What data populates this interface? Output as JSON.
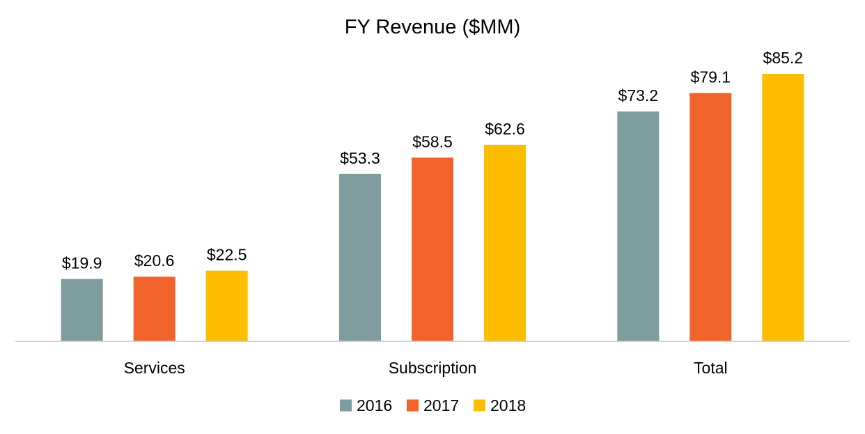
{
  "chart_data": {
    "type": "bar",
    "title": "FY Revenue ($MM)",
    "categories": [
      "Services",
      "Subscription",
      "Total"
    ],
    "series": [
      {
        "name": "2016",
        "color": "#7F9C9F",
        "values": [
          19.9,
          53.3,
          73.2
        ],
        "labels": [
          "$19.9",
          "$53.3",
          "$73.2"
        ]
      },
      {
        "name": "2017",
        "color": "#F0632A",
        "values": [
          20.6,
          58.5,
          79.1
        ],
        "labels": [
          "$20.6",
          "$58.5",
          "$79.1"
        ]
      },
      {
        "name": "2018",
        "color": "#FDBD00",
        "values": [
          22.5,
          62.6,
          85.2
        ],
        "labels": [
          "$22.5",
          "$62.6",
          "$85.2"
        ]
      }
    ],
    "xlabel": "",
    "ylabel": "",
    "ylim": [
      0,
      85.2
    ],
    "grid": false,
    "legend": "bottom"
  }
}
